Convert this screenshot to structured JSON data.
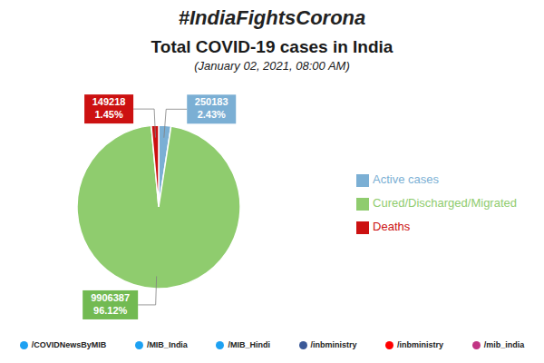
{
  "chart_data": {
    "type": "pie",
    "title": "Total COVID-19 cases in India",
    "subtitle": "(January 02, 2021, 08:00 AM)",
    "hashtag": "#IndiaFightsCorona",
    "categories": [
      "Active cases",
      "Cured/Discharged/Migrated",
      "Deaths"
    ],
    "values": [
      250183,
      9906387,
      149218
    ],
    "colors": [
      "#7bafd4",
      "#8fcc6e",
      "#cc1111"
    ],
    "label_colors": [
      "#7bafd4",
      "#72ba52",
      "#cc1111"
    ],
    "percent_labels": [
      "2.43%",
      "96.12%",
      "1.45%"
    ],
    "data_labels": true,
    "legend": "right",
    "footer": [
      {
        "label": "/COVIDNewsByMIB",
        "color": "#1da1f2"
      },
      {
        "label": "/MIB_India",
        "color": "#1da1f2"
      },
      {
        "label": "/MIB_Hindi",
        "color": "#1da1f2"
      },
      {
        "label": "/inbministry",
        "color": "#3b5998"
      },
      {
        "label": "/inbministry",
        "color": "#ff0000"
      },
      {
        "label": "/mib_india",
        "color": "#c13584"
      }
    ]
  }
}
